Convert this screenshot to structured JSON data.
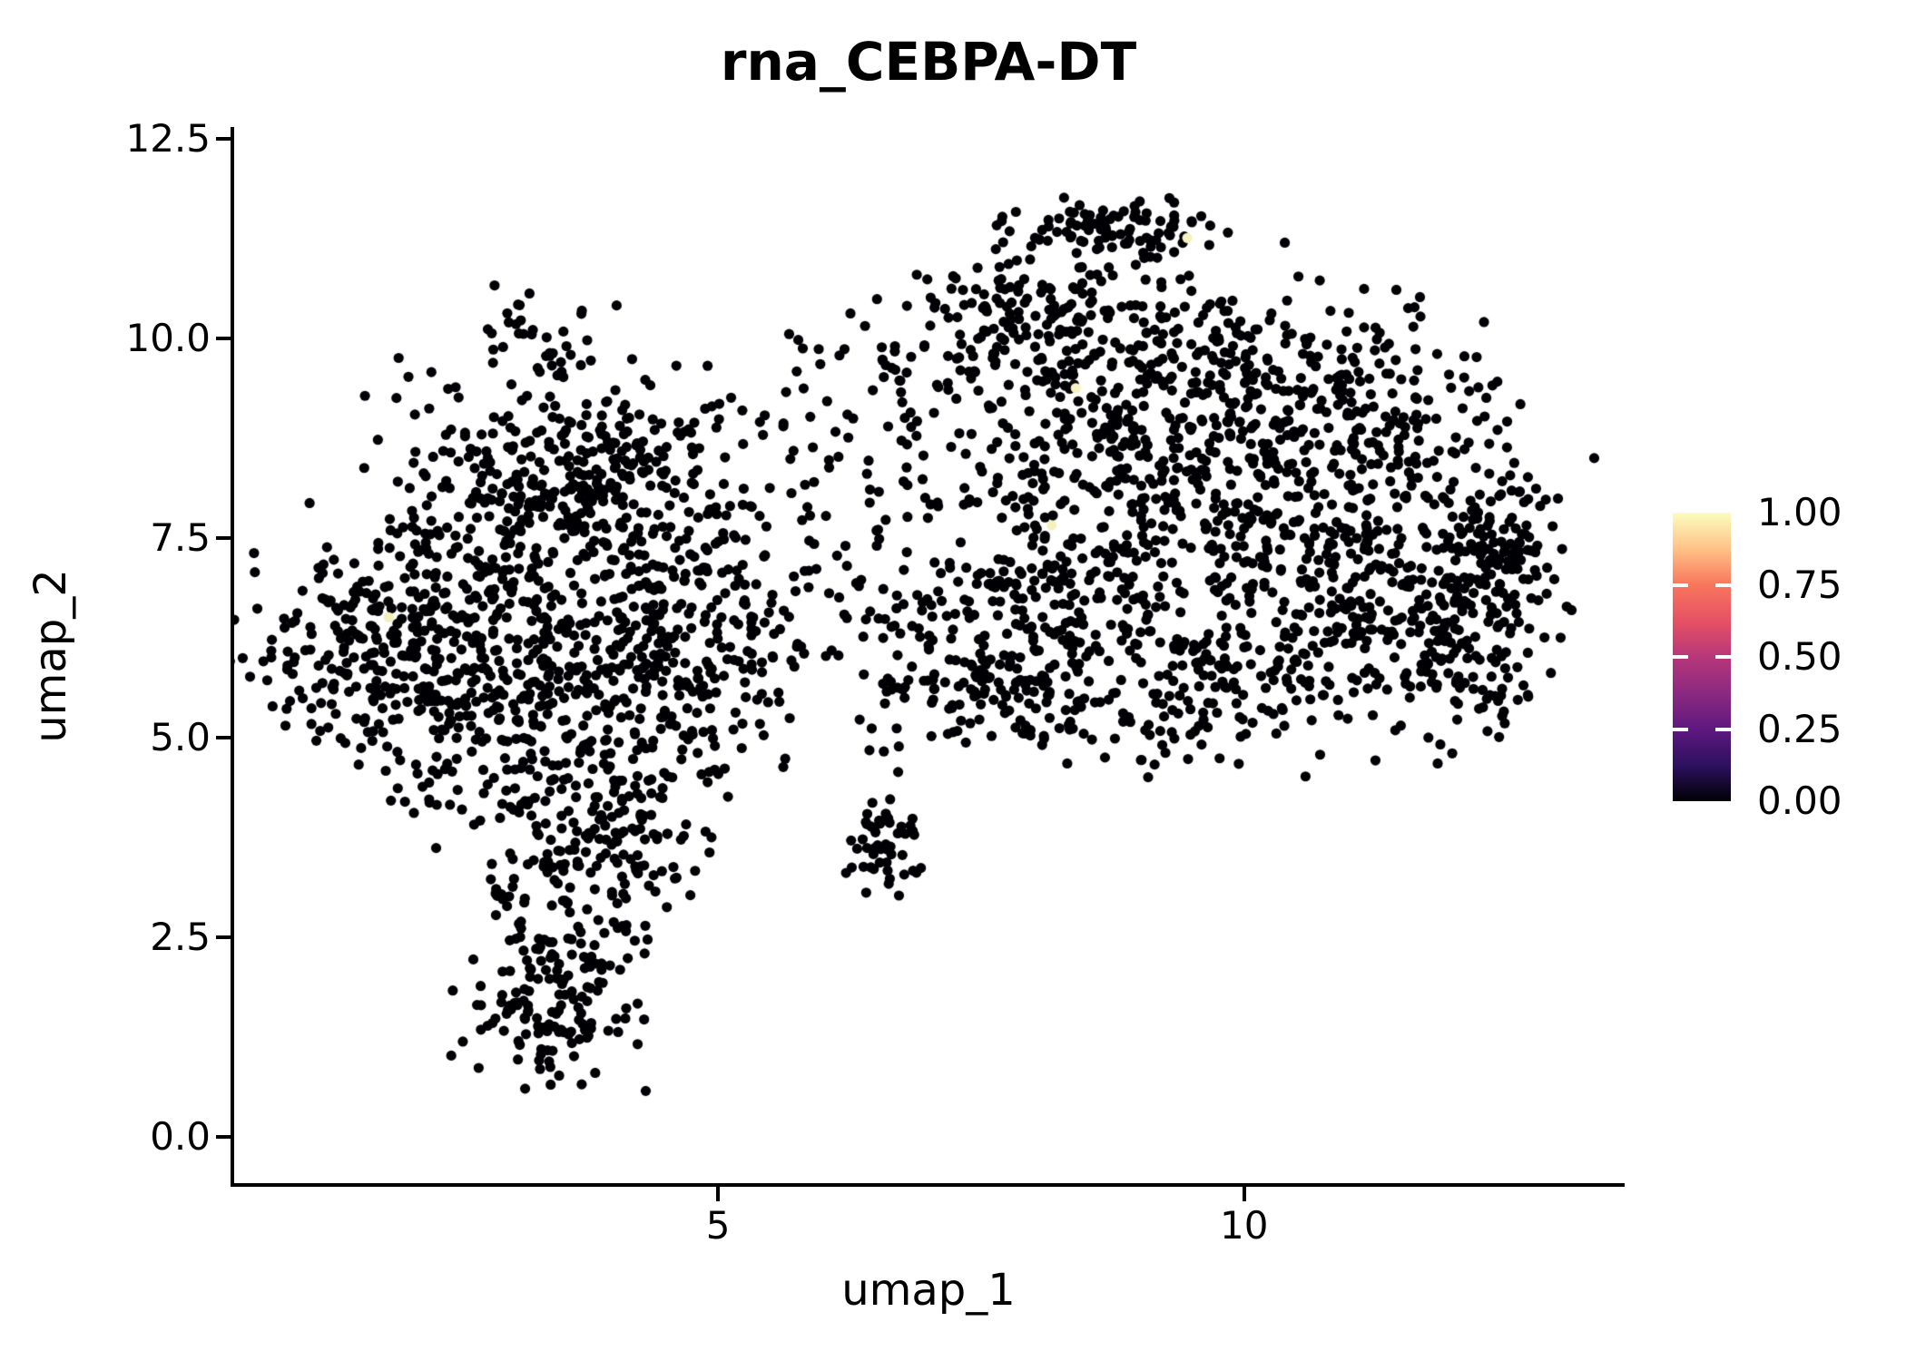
{
  "title": "rna_CEBPA-DT",
  "axes": {
    "x": {
      "label": "umap_1",
      "tick_labels": [
        "5",
        "10"
      ],
      "tick_values": [
        5,
        10
      ]
    },
    "y": {
      "label": "umap_2",
      "tick_labels": [
        "12.5",
        "10.0",
        "7.5",
        "5.0",
        "2.5",
        "0.0"
      ],
      "tick_values": [
        12.5,
        10.0,
        7.5,
        5.0,
        2.5,
        0.0
      ]
    }
  },
  "colorbar": {
    "labels": [
      "1.00",
      "0.75",
      "0.50",
      "0.25",
      "0.00"
    ],
    "label_fractions_from_top": [
      0,
      0.25,
      0.5,
      0.75,
      1
    ],
    "tick_fractions_from_top": [
      0.25,
      0.5,
      0.75
    ],
    "gradient_stops_top_to_bottom": [
      "#FCFDBF",
      "#FEC287",
      "#F8765C",
      "#E65164",
      "#B73779",
      "#8C2981",
      "#5F187F",
      "#2D1160",
      "#000004"
    ]
  },
  "chart_data": {
    "type": "scatter",
    "title": "rna_CEBPA-DT",
    "xlabel": "umap_1",
    "ylabel": "umap_2",
    "xlim": [
      0.4,
      13.6
    ],
    "ylim": [
      -0.6,
      12.65
    ],
    "xticks": [
      5,
      10
    ],
    "yticks": [
      0.0,
      2.5,
      5.0,
      7.5,
      10.0,
      12.5
    ],
    "grid": false,
    "colormap": "magma",
    "color_scale_range": [
      0.0,
      1.0
    ],
    "point_radius_px": 5.6,
    "base_point_color": "#000004",
    "seed": 42,
    "clusters": [
      {
        "cx": 2.7,
        "cy": 6.2,
        "sx": 0.85,
        "sy": 0.9,
        "n": 400
      },
      {
        "cx": 3.4,
        "cy": 8.35,
        "sx": 0.8,
        "sy": 0.65,
        "n": 260
      },
      {
        "cx": 1.6,
        "cy": 6.3,
        "sx": 0.55,
        "sy": 0.65,
        "n": 120
      },
      {
        "cx": 4.3,
        "cy": 7.4,
        "sx": 0.8,
        "sy": 0.95,
        "n": 200
      },
      {
        "cx": 3.6,
        "cy": 4.7,
        "sx": 0.8,
        "sy": 0.8,
        "n": 210
      },
      {
        "cx": 3.9,
        "cy": 3.5,
        "sx": 0.55,
        "sy": 0.5,
        "n": 100
      },
      {
        "cx": 3.5,
        "cy": 2.4,
        "sx": 0.38,
        "sy": 0.5,
        "n": 70
      },
      {
        "cx": 3.4,
        "cy": 1.45,
        "sx": 0.42,
        "sy": 0.38,
        "n": 100
      },
      {
        "cx": 3.5,
        "cy": 10.0,
        "sx": 0.3,
        "sy": 0.35,
        "n": 35
      },
      {
        "cx": 4.8,
        "cy": 6.0,
        "sx": 0.6,
        "sy": 0.7,
        "n": 130
      },
      {
        "cx": 5.9,
        "cy": 7.6,
        "sx": 0.55,
        "sy": 1.0,
        "n": 70
      },
      {
        "cx": 6.5,
        "cy": 9.2,
        "sx": 0.5,
        "sy": 0.6,
        "n": 50
      },
      {
        "cx": 6.8,
        "cy": 6.2,
        "sx": 0.45,
        "sy": 0.6,
        "n": 30
      },
      {
        "cx": 6.6,
        "cy": 3.6,
        "sx": 0.17,
        "sy": 0.3,
        "n": 48
      },
      {
        "cx": 6.62,
        "cy": 4.7,
        "sx": 0.12,
        "sy": 0.45,
        "n": 10
      },
      {
        "cx": 8.75,
        "cy": 11.4,
        "sx": 0.5,
        "sy": 0.18,
        "n": 80
      },
      {
        "cx": 8.6,
        "cy": 9.6,
        "sx": 0.9,
        "sy": 0.85,
        "n": 290
      },
      {
        "cx": 7.7,
        "cy": 10.4,
        "sx": 0.45,
        "sy": 0.55,
        "n": 80
      },
      {
        "cx": 9.6,
        "cy": 8.0,
        "sx": 1.0,
        "sy": 0.95,
        "n": 320
      },
      {
        "cx": 8.0,
        "cy": 6.8,
        "sx": 0.7,
        "sy": 0.75,
        "n": 180
      },
      {
        "cx": 7.7,
        "cy": 5.5,
        "sx": 0.5,
        "sy": 0.45,
        "n": 90
      },
      {
        "cx": 9.3,
        "cy": 5.6,
        "sx": 0.8,
        "sy": 0.5,
        "n": 140
      },
      {
        "cx": 11.0,
        "cy": 6.5,
        "sx": 0.9,
        "sy": 0.8,
        "n": 230
      },
      {
        "cx": 12.1,
        "cy": 6.3,
        "sx": 0.5,
        "sy": 0.7,
        "n": 140
      },
      {
        "cx": 12.5,
        "cy": 7.4,
        "sx": 0.25,
        "sy": 0.45,
        "n": 70
      },
      {
        "cx": 10.6,
        "cy": 9.4,
        "sx": 0.8,
        "sy": 0.7,
        "n": 200
      },
      {
        "cx": 11.5,
        "cy": 8.3,
        "sx": 0.8,
        "sy": 0.6,
        "n": 110
      }
    ],
    "highlighted_points": [
      {
        "x": 9.46,
        "y": 11.26,
        "value_estimate": 1.0,
        "color": "#F6F2C2"
      },
      {
        "x": 8.4,
        "y": 9.38,
        "value_estimate": 1.0,
        "color": "#F6F2C2"
      },
      {
        "x": 8.17,
        "y": 7.66,
        "value_estimate": 0.97,
        "color": "#F5F1BE"
      },
      {
        "x": 1.87,
        "y": 6.51,
        "value_estimate": 0.95,
        "color": "#F3EEBC"
      }
    ]
  }
}
